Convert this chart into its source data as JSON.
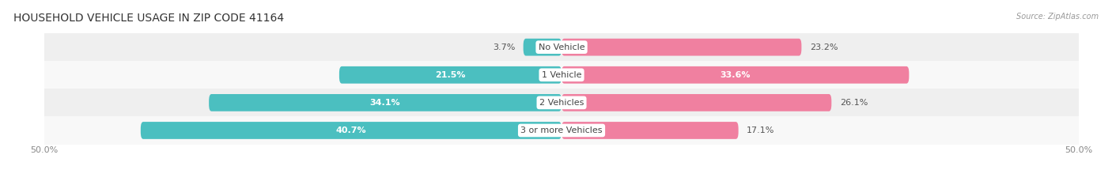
{
  "title": "HOUSEHOLD VEHICLE USAGE IN ZIP CODE 41164",
  "source": "Source: ZipAtlas.com",
  "categories": [
    "No Vehicle",
    "1 Vehicle",
    "2 Vehicles",
    "3 or more Vehicles"
  ],
  "owner_values": [
    3.7,
    21.5,
    34.1,
    40.7
  ],
  "renter_values": [
    23.2,
    33.6,
    26.1,
    17.1
  ],
  "owner_color": "#4BBFC0",
  "renter_color": "#F080A0",
  "x_min": -50.0,
  "x_max": 50.0,
  "title_fontsize": 10,
  "label_fontsize": 8,
  "value_fontsize": 8,
  "tick_fontsize": 8,
  "background_color": "#FFFFFF",
  "bar_height": 0.62,
  "row_bg_colors": [
    "#EFEFEF",
    "#F8F8F8",
    "#EFEFEF",
    "#F8F8F8"
  ]
}
